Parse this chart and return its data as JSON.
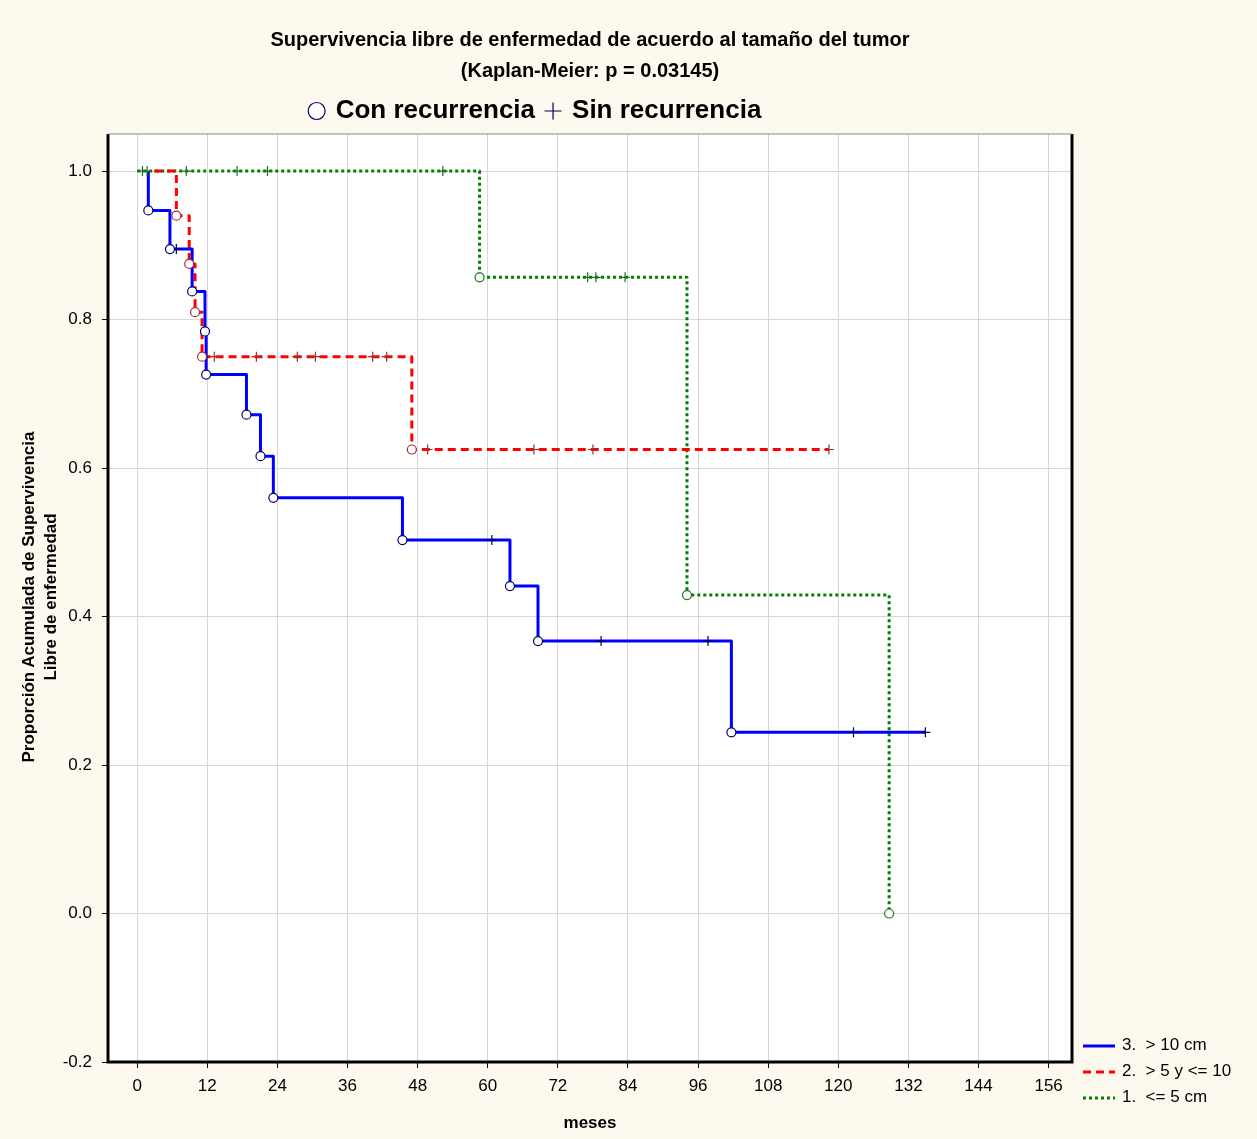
{
  "chart_data": {
    "type": "step",
    "title": "Supervivencia libre de enfermedad de acuerdo al tamaño del tumor",
    "subtitle": "(Kaplan-Meier: p = 0.03145)",
    "xlabel": "meses",
    "ylabel": "Proporción Acumulada de Supervivencia\nLibre de enfermedad",
    "xlim": [
      -5,
      160
    ],
    "xticks": [
      0,
      12,
      24,
      36,
      48,
      60,
      72,
      84,
      96,
      108,
      120,
      132,
      144,
      156
    ],
    "ylim": [
      -0.2,
      1.05
    ],
    "yticks": [
      {
        "value": -0.2,
        "label": "-0.2"
      },
      {
        "value": 0,
        "label": "0.0"
      },
      {
        "value": 0.2,
        "label": "0.2"
      },
      {
        "value": 0.4,
        "label": "0.4"
      },
      {
        "value": 0.6,
        "label": "0.6"
      },
      {
        "value": 0.8,
        "label": "0.8"
      },
      {
        "value": 1,
        "label": "1.0"
      }
    ],
    "grid": true,
    "legend": "bottom right",
    "series": [
      {
        "name": "3.  > 10 cm",
        "color": "#0000ff",
        "line_style": "solid",
        "marker": "none",
        "x": [
          1.9,
          1.9,
          5.6,
          9.4,
          11.6,
          11.8,
          18.7,
          21.1,
          23.3,
          45.4,
          63.8,
          68.6,
          101.7,
          134.9
        ],
        "values": [
          1,
          0.947,
          0.895,
          0.838,
          0.784,
          0.726,
          0.672,
          0.616,
          0.56,
          0.503,
          0.441,
          0.367,
          0.244,
          0.244
        ]
      },
      {
        "name": "2.  > 5 y <= 10",
        "color": "#ff0000",
        "line_style": "dashed",
        "marker": "none",
        "x": [
          2.9,
          6.7,
          8.9,
          9.9,
          11.1,
          47.0,
          118.4
        ],
        "values": [
          1,
          0.94,
          0.875,
          0.81,
          0.75,
          0.625,
          0.625
        ]
      },
      {
        "name": "1.  <= 5 cm",
        "color": "#007f00",
        "line_style": "dotted",
        "marker": "none",
        "x": [
          0,
          58.6,
          94.1,
          128.7
        ],
        "values": [
          1,
          0.857,
          0.429,
          0
        ]
      },
      {
        "type": "scatter",
        "name": "Con recurrencia",
        "color": "#0000ff",
        "marker": "circle",
        "x": [
          1.9,
          5.6,
          9.4,
          11.6,
          11.8,
          18.7,
          21.1,
          23.3,
          45.4,
          63.8,
          68.6,
          101.7,
          6.7,
          8.9,
          9.9,
          11.1,
          47.0,
          58.6,
          94.1,
          128.7
        ],
        "values": [
          0.947,
          0.895,
          0.838,
          0.784,
          0.726,
          0.672,
          0.616,
          0.56,
          0.503,
          0.441,
          0.367,
          0.244,
          0.94,
          0.875,
          0.81,
          0.75,
          0.625,
          0.857,
          0.429,
          0
        ],
        "colors": [
          "#000060",
          "#000060",
          "#000060",
          "#000060",
          "#000060",
          "#000060",
          "#000060",
          "#000060",
          "#000060",
          "#000060",
          "#000060",
          "#000060",
          "#a03030",
          "#a03030",
          "#a03030",
          "#a03030",
          "#a03030",
          "#207020",
          "#207020",
          "#207020"
        ]
      },
      {
        "type": "scatter",
        "name": "Sin recurrencia",
        "color": "#404040",
        "marker": "cross",
        "x": [
          6.7,
          60.7,
          79.4,
          97.7,
          122.6,
          134.9,
          13.2,
          20.4,
          27.4,
          30.5,
          40.3,
          42.7,
          49.7,
          67.9,
          78.0,
          118.4,
          0.9,
          1.7,
          8.4,
          17.1,
          22.3,
          52.3,
          77.1,
          78.5,
          83.5
        ],
        "values": [
          0.895,
          0.503,
          0.367,
          0.367,
          0.244,
          0.244,
          0.75,
          0.75,
          0.75,
          0.75,
          0.75,
          0.75,
          0.625,
          0.625,
          0.625,
          0.625,
          1,
          1,
          1,
          1,
          1,
          1,
          0.857,
          0.857,
          0.857
        ],
        "colors": [
          "#000060",
          "#000060",
          "#000060",
          "#000060",
          "#000060",
          "#000060",
          "#a03030",
          "#a03030",
          "#a03030",
          "#a03030",
          "#a03030",
          "#a03030",
          "#a03030",
          "#a03030",
          "#a03030",
          "#a03030",
          "#207020",
          "#207020",
          "#207020",
          "#207020",
          "#207020",
          "#207020",
          "#207020",
          "#207020",
          "#207020"
        ]
      }
    ]
  }
}
